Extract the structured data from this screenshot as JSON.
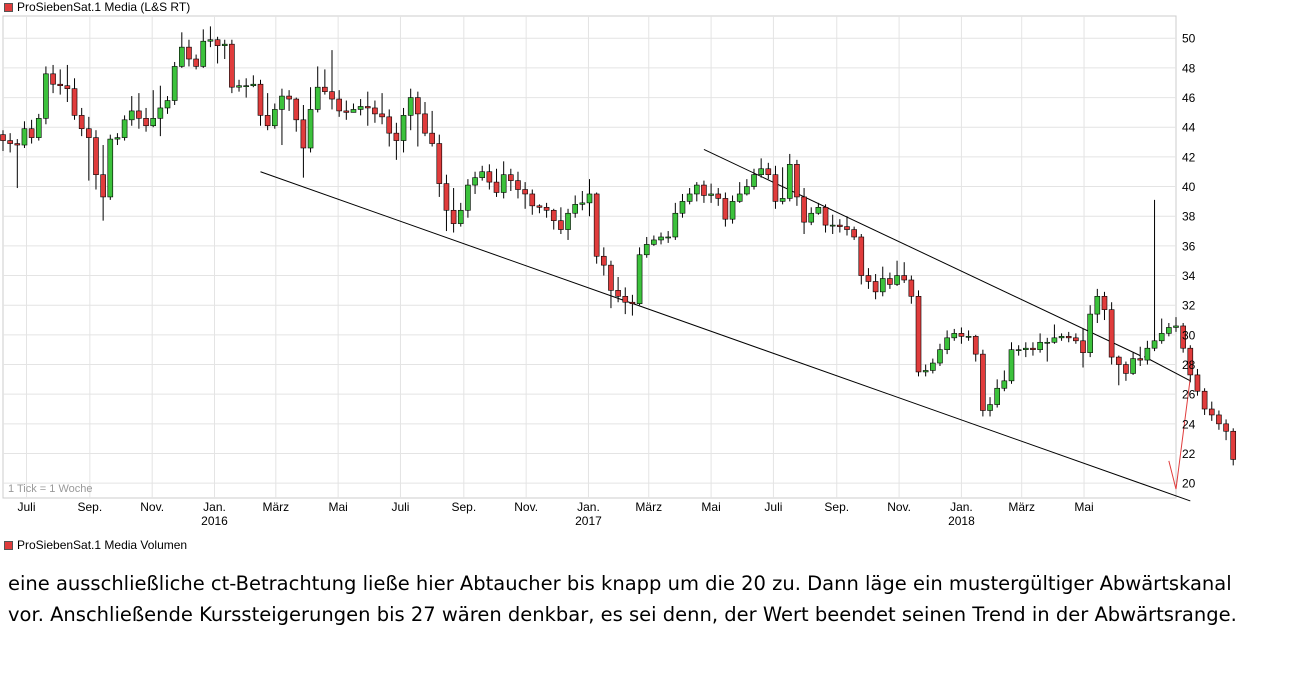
{
  "legend": {
    "price_label": "ProSiebenSat.1 Media (L&S RT)",
    "volume_label": "ProSiebenSat.1 Media Volumen"
  },
  "colors": {
    "up_candle": "#3cc23c",
    "down_candle": "#e03c3c",
    "grid": "#e4e4e4",
    "channel_line": "#000000",
    "projection_line": "#e03c3c"
  },
  "chart_data": {
    "type": "candlestick",
    "title": "ProSiebenSat.1 Media (L&S RT)",
    "note": "1 Tick = 1 Woche",
    "yticks": [
      20,
      22,
      24,
      26,
      28,
      30,
      32,
      34,
      36,
      38,
      40,
      42,
      44,
      46,
      48,
      50
    ],
    "ylim": [
      19,
      51.5
    ],
    "xlim": [
      "2015-06-08",
      "2018-07-30"
    ],
    "xticks": [
      {
        "date": "2015-07-01",
        "label": "Juli",
        "year": ""
      },
      {
        "date": "2015-09-01",
        "label": "Sep.",
        "year": ""
      },
      {
        "date": "2015-11-01",
        "label": "Nov.",
        "year": ""
      },
      {
        "date": "2016-01-01",
        "label": "Jan.",
        "year": "2016"
      },
      {
        "date": "2016-03-01",
        "label": "März",
        "year": ""
      },
      {
        "date": "2016-05-01",
        "label": "Mai",
        "year": ""
      },
      {
        "date": "2016-07-01",
        "label": "Juli",
        "year": ""
      },
      {
        "date": "2016-09-01",
        "label": "Sep.",
        "year": ""
      },
      {
        "date": "2016-11-01",
        "label": "Nov.",
        "year": ""
      },
      {
        "date": "2017-01-01",
        "label": "Jan.",
        "year": "2017"
      },
      {
        "date": "2017-03-01",
        "label": "März",
        "year": ""
      },
      {
        "date": "2017-05-01",
        "label": "Mai",
        "year": ""
      },
      {
        "date": "2017-07-01",
        "label": "Juli",
        "year": ""
      },
      {
        "date": "2017-09-01",
        "label": "Sep.",
        "year": ""
      },
      {
        "date": "2017-11-01",
        "label": "Nov.",
        "year": ""
      },
      {
        "date": "2018-01-01",
        "label": "Jan.",
        "year": "2018"
      },
      {
        "date": "2018-03-01",
        "label": "März",
        "year": ""
      },
      {
        "date": "2018-05-01",
        "label": "Mai",
        "year": ""
      }
    ],
    "start_date": "2015-06-08",
    "candles": [
      [
        43.5,
        43.1,
        43.8,
        42.4
      ],
      [
        43.1,
        42.9,
        43.6,
        42.3
      ],
      [
        42.9,
        42.8,
        43.2,
        39.9
      ],
      [
        42.8,
        43.9,
        44.4,
        42.6
      ],
      [
        43.9,
        43.3,
        44.5,
        42.9
      ],
      [
        43.3,
        44.6,
        44.9,
        43.1
      ],
      [
        44.6,
        47.6,
        48.1,
        44.2
      ],
      [
        47.6,
        46.9,
        48.2,
        46.3
      ],
      [
        46.9,
        46.8,
        47.9,
        46.2
      ],
      [
        46.8,
        46.6,
        48.2,
        45.7
      ],
      [
        46.6,
        44.8,
        47.3,
        44.5
      ],
      [
        44.8,
        43.9,
        45.3,
        43.4
      ],
      [
        43.9,
        43.3,
        44.7,
        40.4
      ],
      [
        43.3,
        40.8,
        43.8,
        39.8
      ],
      [
        40.8,
        39.3,
        42.8,
        37.7
      ],
      [
        39.3,
        43.2,
        43.5,
        39.1
      ],
      [
        43.2,
        43.3,
        43.6,
        42.8
      ],
      [
        43.3,
        44.5,
        44.8,
        43.1
      ],
      [
        44.5,
        45.1,
        46.1,
        44.1
      ],
      [
        45.1,
        44.6,
        46.3,
        43.9
      ],
      [
        44.6,
        44.1,
        45.3,
        43.7
      ],
      [
        44.1,
        44.6,
        46.5,
        44.0
      ],
      [
        44.6,
        45.3,
        46.8,
        43.4
      ],
      [
        45.3,
        45.8,
        46.1,
        44.9
      ],
      [
        45.8,
        48.1,
        48.4,
        45.5
      ],
      [
        48.1,
        49.4,
        50.4,
        48.0
      ],
      [
        49.4,
        48.6,
        49.9,
        48.1
      ],
      [
        48.6,
        48.1,
        48.9,
        47.9
      ],
      [
        48.1,
        49.8,
        50.6,
        48.0
      ],
      [
        49.8,
        49.9,
        50.8,
        49.4
      ],
      [
        49.9,
        49.5,
        50.1,
        48.3
      ],
      [
        49.5,
        49.6,
        49.9,
        48.6
      ],
      [
        49.6,
        46.7,
        49.9,
        46.3
      ],
      [
        46.7,
        46.8,
        47.2,
        46.4
      ],
      [
        46.8,
        46.8,
        47.3,
        46.0
      ],
      [
        46.8,
        46.9,
        47.5,
        46.7
      ],
      [
        46.9,
        44.8,
        47.2,
        44.1
      ],
      [
        44.8,
        44.1,
        46.3,
        43.8
      ],
      [
        44.1,
        45.2,
        45.6,
        43.9
      ],
      [
        45.2,
        46.1,
        46.6,
        42.8
      ],
      [
        46.1,
        45.9,
        46.5,
        45.1
      ],
      [
        45.9,
        44.5,
        46.0,
        43.7
      ],
      [
        44.5,
        42.6,
        45.5,
        40.6
      ],
      [
        42.6,
        45.2,
        46.7,
        42.3
      ],
      [
        45.2,
        46.7,
        48.1,
        45.0
      ],
      [
        46.7,
        46.4,
        47.9,
        46.2
      ],
      [
        46.4,
        45.9,
        49.2,
        45.2
      ],
      [
        45.9,
        45.1,
        46.5,
        44.7
      ],
      [
        45.1,
        45.0,
        45.8,
        44.5
      ],
      [
        45.0,
        45.2,
        45.6,
        45.0
      ],
      [
        45.2,
        45.4,
        45.9,
        44.8
      ],
      [
        45.4,
        45.3,
        46.4,
        44.1
      ],
      [
        45.3,
        44.9,
        45.8,
        44.3
      ],
      [
        44.9,
        44.7,
        46.3,
        44.2
      ],
      [
        44.7,
        43.6,
        45.2,
        42.7
      ],
      [
        43.6,
        43.1,
        44.3,
        41.8
      ],
      [
        43.1,
        44.8,
        45.3,
        42.3
      ],
      [
        44.8,
        46.0,
        46.6,
        43.8
      ],
      [
        46.0,
        44.9,
        46.4,
        42.7
      ],
      [
        44.9,
        43.6,
        45.7,
        43.4
      ],
      [
        43.6,
        42.9,
        45.1,
        42.7
      ],
      [
        42.9,
        40.2,
        43.5,
        39.3
      ],
      [
        40.2,
        38.4,
        40.8,
        37.0
      ],
      [
        38.4,
        37.5,
        39.9,
        36.9
      ],
      [
        37.5,
        38.4,
        38.9,
        37.3
      ],
      [
        38.4,
        40.1,
        40.5,
        37.9
      ],
      [
        40.1,
        40.6,
        41.0,
        39.5
      ],
      [
        40.6,
        41.0,
        41.4,
        40.4
      ],
      [
        41.0,
        40.3,
        41.5,
        39.8
      ],
      [
        40.3,
        39.6,
        41.2,
        39.3
      ],
      [
        39.6,
        40.8,
        41.7,
        39.2
      ],
      [
        40.8,
        40.4,
        41.2,
        39.7
      ],
      [
        40.4,
        39.8,
        41.0,
        39.2
      ],
      [
        39.8,
        39.5,
        40.3,
        38.5
      ],
      [
        39.5,
        38.7,
        39.8,
        38.1
      ],
      [
        38.7,
        38.6,
        38.8,
        38.2
      ],
      [
        38.6,
        38.4,
        38.9,
        37.9
      ],
      [
        38.4,
        37.7,
        38.5,
        37.1
      ],
      [
        37.7,
        37.1,
        38.6,
        36.8
      ],
      [
        37.1,
        38.2,
        38.5,
        36.4
      ],
      [
        38.2,
        38.8,
        39.4,
        37.9
      ],
      [
        38.8,
        38.9,
        39.7,
        38.4
      ],
      [
        38.9,
        39.5,
        40.5,
        38.0
      ],
      [
        39.5,
        35.3,
        39.6,
        34.8
      ],
      [
        35.3,
        34.7,
        35.9,
        34.0
      ],
      [
        34.7,
        33.0,
        35.0,
        31.8
      ],
      [
        33.0,
        32.6,
        33.9,
        32.2
      ],
      [
        32.6,
        32.2,
        33.2,
        31.4
      ],
      [
        32.2,
        32.1,
        32.7,
        31.3
      ],
      [
        32.1,
        35.4,
        35.9,
        32.0
      ],
      [
        35.4,
        36.1,
        36.6,
        35.2
      ],
      [
        36.1,
        36.4,
        36.7,
        36.0
      ],
      [
        36.4,
        36.6,
        36.9,
        36.1
      ],
      [
        36.6,
        36.6,
        37.0,
        36.2
      ],
      [
        36.6,
        38.2,
        38.9,
        36.4
      ],
      [
        38.2,
        39.0,
        39.5,
        37.9
      ],
      [
        39.0,
        39.5,
        39.9,
        38.8
      ],
      [
        39.5,
        40.1,
        40.3,
        39.0
      ],
      [
        40.1,
        39.4,
        40.4,
        38.9
      ],
      [
        39.4,
        39.5,
        40.2,
        38.9
      ],
      [
        39.5,
        39.2,
        39.9,
        38.7
      ],
      [
        39.2,
        37.8,
        39.6,
        37.3
      ],
      [
        37.8,
        39.0,
        39.4,
        37.5
      ],
      [
        39.0,
        39.5,
        40.3,
        38.9
      ],
      [
        39.5,
        40.0,
        40.5,
        39.4
      ],
      [
        40.0,
        40.8,
        41.2,
        39.8
      ],
      [
        40.8,
        41.2,
        41.9,
        40.6
      ],
      [
        41.2,
        40.8,
        41.6,
        40.5
      ],
      [
        40.8,
        39.0,
        41.4,
        38.5
      ],
      [
        39.0,
        39.2,
        41.3,
        38.8
      ],
      [
        39.2,
        41.5,
        42.2,
        39.0
      ],
      [
        41.5,
        39.3,
        41.8,
        38.7
      ],
      [
        39.3,
        37.6,
        39.9,
        36.8
      ],
      [
        37.6,
        38.2,
        38.6,
        37.4
      ],
      [
        38.2,
        38.6,
        38.9,
        38.1
      ],
      [
        38.6,
        37.4,
        38.8,
        36.9
      ],
      [
        37.4,
        37.4,
        38.1,
        36.8
      ],
      [
        37.4,
        37.3,
        37.8,
        36.9
      ],
      [
        37.3,
        37.1,
        38.0,
        36.7
      ],
      [
        37.1,
        36.6,
        37.3,
        36.4
      ],
      [
        36.6,
        34.0,
        36.8,
        33.4
      ],
      [
        34.0,
        33.6,
        34.5,
        33.1
      ],
      [
        33.6,
        32.9,
        34.1,
        32.4
      ],
      [
        32.9,
        33.8,
        34.6,
        32.6
      ],
      [
        33.8,
        33.4,
        34.2,
        33.1
      ],
      [
        33.4,
        34.0,
        35.0,
        33.3
      ],
      [
        34.0,
        33.7,
        34.9,
        33.5
      ],
      [
        33.7,
        32.6,
        34.0,
        32.1
      ],
      [
        32.6,
        27.5,
        33.0,
        27.2
      ],
      [
        27.5,
        27.6,
        28.0,
        27.2
      ],
      [
        27.6,
        28.1,
        28.4,
        27.4
      ],
      [
        28.1,
        29.0,
        29.4,
        27.9
      ],
      [
        29.0,
        29.8,
        30.3,
        28.7
      ],
      [
        29.8,
        30.1,
        30.4,
        29.6
      ],
      [
        30.1,
        29.9,
        30.5,
        29.4
      ],
      [
        29.9,
        29.9,
        30.3,
        29.6
      ],
      [
        29.9,
        28.7,
        30.0,
        28.2
      ],
      [
        28.7,
        24.9,
        29.0,
        24.5
      ],
      [
        24.9,
        25.3,
        25.8,
        24.5
      ],
      [
        25.3,
        26.4,
        27.0,
        25.1
      ],
      [
        26.4,
        26.9,
        27.6,
        26.2
      ],
      [
        26.9,
        29.0,
        29.5,
        26.7
      ],
      [
        29.0,
        29.0,
        29.3,
        28.6
      ],
      [
        29.0,
        29.1,
        29.5,
        28.5
      ],
      [
        29.1,
        29.0,
        29.5,
        28.6
      ],
      [
        29.0,
        29.5,
        30.1,
        28.8
      ],
      [
        29.5,
        29.5,
        29.8,
        28.2
      ],
      [
        29.5,
        29.8,
        30.7,
        29.4
      ],
      [
        29.8,
        29.9,
        30.1,
        29.6
      ],
      [
        29.9,
        29.8,
        30.2,
        29.5
      ],
      [
        29.8,
        29.6,
        30.1,
        29.4
      ],
      [
        29.6,
        28.8,
        30.4,
        27.8
      ],
      [
        28.8,
        31.4,
        32.0,
        28.5
      ],
      [
        31.4,
        32.6,
        33.1,
        30.8
      ],
      [
        32.6,
        31.7,
        32.9,
        31.0
      ],
      [
        31.7,
        28.5,
        32.2,
        28.0
      ],
      [
        28.5,
        28.0,
        28.6,
        26.6
      ],
      [
        28.0,
        27.4,
        28.2,
        26.9
      ],
      [
        27.4,
        28.4,
        28.8,
        27.3
      ],
      [
        28.4,
        28.3,
        29.2,
        27.9
      ],
      [
        28.3,
        29.1,
        29.6,
        28.0
      ],
      [
        29.1,
        29.6,
        39.1,
        28.9
      ],
      [
        29.6,
        30.1,
        31.1,
        29.4
      ],
      [
        30.1,
        30.5,
        30.8,
        29.9
      ],
      [
        30.5,
        30.6,
        31.2,
        30.2
      ],
      [
        30.6,
        29.1,
        30.8,
        28.8
      ],
      [
        29.1,
        27.3,
        29.3,
        26.8
      ],
      [
        27.3,
        26.2,
        27.7,
        25.9
      ],
      [
        26.2,
        25.0,
        26.4,
        24.6
      ],
      [
        25.0,
        24.6,
        25.5,
        24.2
      ],
      [
        24.6,
        24.0,
        24.9,
        23.6
      ],
      [
        24.0,
        23.5,
        24.3,
        22.9
      ],
      [
        23.5,
        21.6,
        23.7,
        21.2
      ]
    ],
    "channel": {
      "lower_line": [
        [
          "2016-02-15",
          41.0
        ],
        [
          "2018-08-13",
          18.8
        ]
      ],
      "upper_line": [
        [
          "2017-04-24",
          42.5
        ],
        [
          "2018-06-25",
          28.6
        ],
        [
          "2018-08-13",
          26.9
        ]
      ]
    },
    "projection": [
      [
        "2018-07-23",
        21.5
      ],
      [
        "2018-07-30",
        19.6
      ],
      [
        "2018-08-13",
        27.1
      ]
    ]
  },
  "caption": {
    "line1": "eine ausschließliche ct-Betrachtung ließe hier Abtaucher bis knapp um die 20 zu. Dann läge ein mustergültiger Abwärtskanal",
    "line2": "vor. Anschließende Kurssteigerungen bis 27 wären denkbar, es sei denn, der Wert beendet seinen Trend in der Abwärtsrange."
  }
}
